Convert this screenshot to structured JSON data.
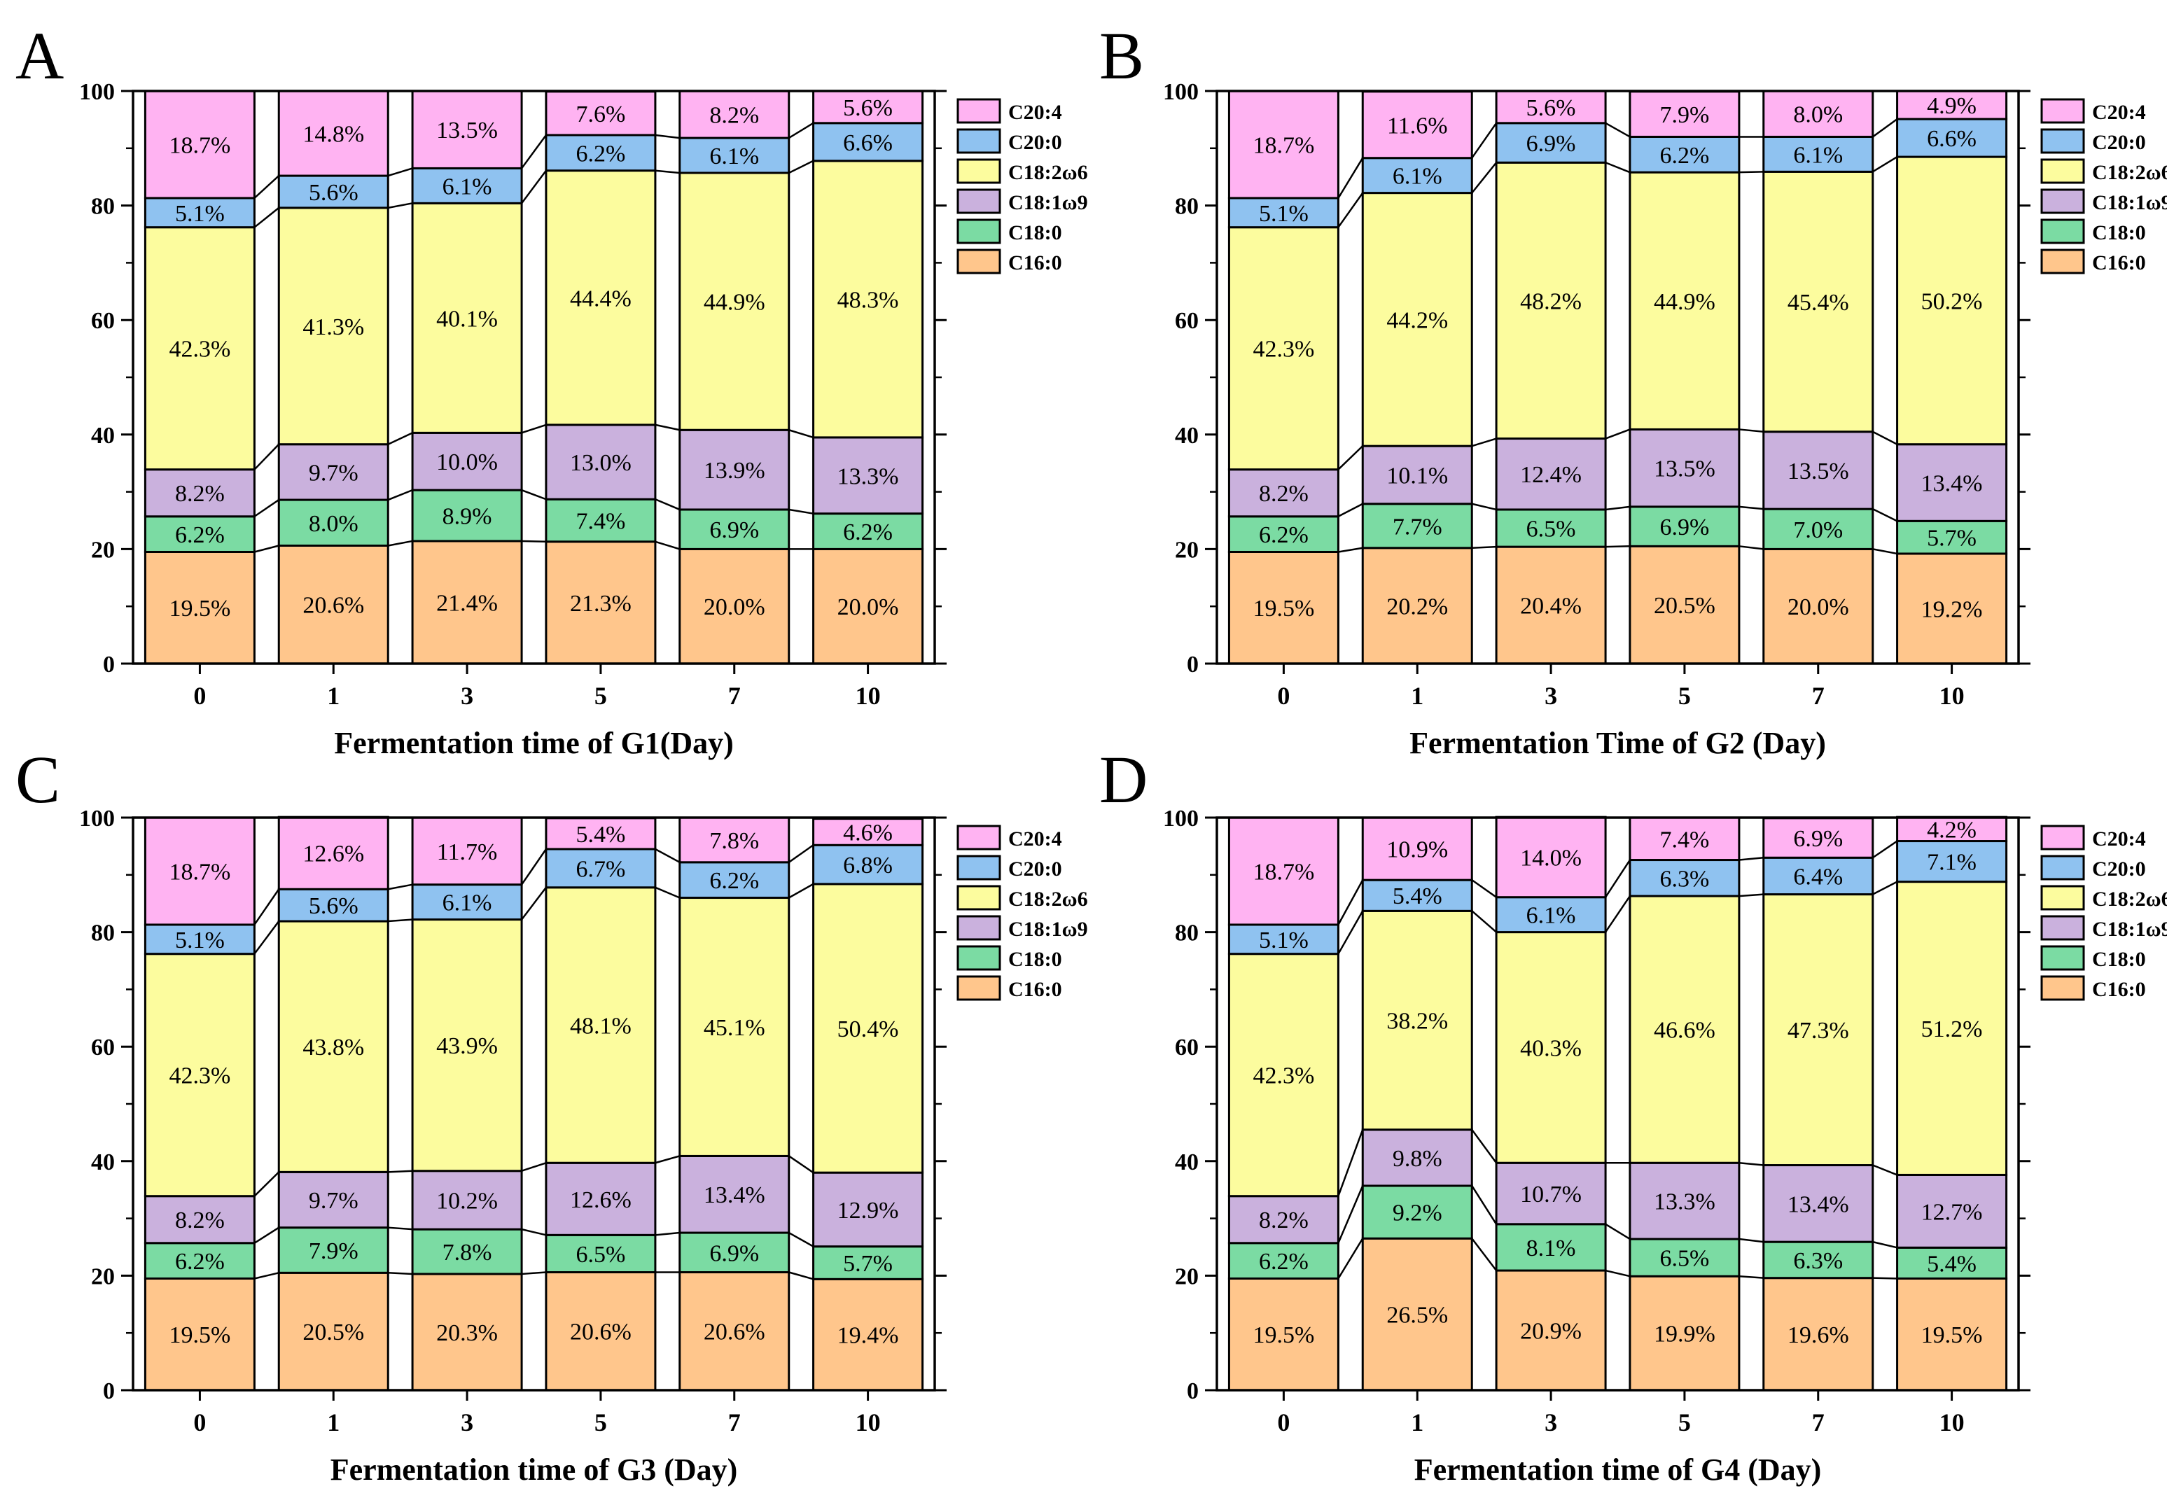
{
  "figure": {
    "background": "#ffffff",
    "legend_order": [
      "C20:4",
      "C20:0",
      "C18:2ω6",
      "C18:1ω9",
      "C18:0",
      "C16:0"
    ],
    "colors": {
      "C20:4": "#FFB3F2",
      "C20:0": "#8FC2F0",
      "C18:2ω6": "#FCFC9E",
      "C18:1ω9": "#CAB1DD",
      "C18:0": "#7BDBA3",
      "C16:0": "#FFC68C"
    },
    "bar_border_color": "#000000",
    "connector_color": "#000000"
  },
  "chart_data": [
    {
      "type": "bar",
      "stacked": true,
      "panel_letter": "A",
      "title": "",
      "xlabel": "Fermentation time of G1(Day)",
      "ylabel": "",
      "ylim": [
        0,
        100
      ],
      "yticks": [
        0,
        20,
        40,
        60,
        80,
        100
      ],
      "yminorticks": [
        10,
        30,
        50,
        70,
        90
      ],
      "legend_position": "right",
      "grid": false,
      "categories": [
        "0",
        "1",
        "3",
        "5",
        "7",
        "10"
      ],
      "series": [
        {
          "name": "C16:0",
          "values": [
            19.5,
            20.6,
            21.4,
            21.3,
            20.0,
            20.0
          ]
        },
        {
          "name": "C18:0",
          "values": [
            6.2,
            8.0,
            8.9,
            7.4,
            6.9,
            6.2
          ]
        },
        {
          "name": "C18:1ω9",
          "values": [
            8.2,
            9.7,
            10.0,
            13.0,
            13.9,
            13.3
          ]
        },
        {
          "name": "C18:2ω6",
          "values": [
            42.3,
            41.3,
            40.1,
            44.4,
            44.9,
            48.3
          ]
        },
        {
          "name": "C20:0",
          "values": [
            5.1,
            5.6,
            6.1,
            6.2,
            6.1,
            6.6
          ]
        },
        {
          "name": "C20:4",
          "values": [
            18.7,
            14.8,
            13.5,
            7.6,
            8.2,
            5.6
          ]
        }
      ]
    },
    {
      "type": "bar",
      "stacked": true,
      "panel_letter": "B",
      "title": "",
      "xlabel": "Fermentation Time of G2 (Day)",
      "ylabel": "",
      "ylim": [
        0,
        100
      ],
      "yticks": [
        0,
        20,
        40,
        60,
        80,
        100
      ],
      "yminorticks": [
        10,
        30,
        50,
        70,
        90
      ],
      "legend_position": "right",
      "grid": false,
      "categories": [
        "0",
        "1",
        "3",
        "5",
        "7",
        "10"
      ],
      "series": [
        {
          "name": "C16:0",
          "values": [
            19.5,
            20.2,
            20.4,
            20.5,
            20.0,
            19.2
          ]
        },
        {
          "name": "C18:0",
          "values": [
            6.2,
            7.7,
            6.5,
            6.9,
            7.0,
            5.7
          ]
        },
        {
          "name": "C18:1ω9",
          "values": [
            8.2,
            10.1,
            12.4,
            13.5,
            13.5,
            13.4
          ]
        },
        {
          "name": "C18:2ω6",
          "values": [
            42.3,
            44.2,
            48.2,
            44.9,
            45.4,
            50.2
          ]
        },
        {
          "name": "C20:0",
          "values": [
            5.1,
            6.1,
            6.9,
            6.2,
            6.1,
            6.6
          ]
        },
        {
          "name": "C20:4",
          "values": [
            18.7,
            11.6,
            5.6,
            7.9,
            8.0,
            4.9
          ]
        }
      ]
    },
    {
      "type": "bar",
      "stacked": true,
      "panel_letter": "C",
      "title": "",
      "xlabel": "Fermentation time of G3 (Day)",
      "ylabel": "",
      "ylim": [
        0,
        100
      ],
      "yticks": [
        0,
        20,
        40,
        60,
        80,
        100
      ],
      "yminorticks": [
        10,
        30,
        50,
        70,
        90
      ],
      "legend_position": "right",
      "grid": false,
      "categories": [
        "0",
        "1",
        "3",
        "5",
        "7",
        "10"
      ],
      "series": [
        {
          "name": "C16:0",
          "values": [
            19.5,
            20.5,
            20.3,
            20.6,
            20.6,
            19.4
          ]
        },
        {
          "name": "C18:0",
          "values": [
            6.2,
            7.9,
            7.8,
            6.5,
            6.9,
            5.7
          ]
        },
        {
          "name": "C18:1ω9",
          "values": [
            8.2,
            9.7,
            10.2,
            12.6,
            13.4,
            12.9
          ]
        },
        {
          "name": "C18:2ω6",
          "values": [
            42.3,
            43.8,
            43.9,
            48.1,
            45.1,
            50.4
          ]
        },
        {
          "name": "C20:0",
          "values": [
            5.1,
            5.6,
            6.1,
            6.7,
            6.2,
            6.8
          ]
        },
        {
          "name": "C20:4",
          "values": [
            18.7,
            12.6,
            11.7,
            5.4,
            7.8,
            4.6
          ]
        }
      ]
    },
    {
      "type": "bar",
      "stacked": true,
      "panel_letter": "D",
      "title": "",
      "xlabel": "Fermentation time of G4 (Day)",
      "ylabel": "",
      "ylim": [
        0,
        100
      ],
      "yticks": [
        0,
        20,
        40,
        60,
        80,
        100
      ],
      "yminorticks": [
        10,
        30,
        50,
        70,
        90
      ],
      "legend_position": "right",
      "grid": false,
      "categories": [
        "0",
        "1",
        "3",
        "5",
        "7",
        "10"
      ],
      "series": [
        {
          "name": "C16:0",
          "values": [
            19.5,
            26.5,
            20.9,
            19.9,
            19.6,
            19.5
          ]
        },
        {
          "name": "C18:0",
          "values": [
            6.2,
            9.2,
            8.1,
            6.5,
            6.3,
            5.4
          ]
        },
        {
          "name": "C18:1ω9",
          "values": [
            8.2,
            9.8,
            10.7,
            13.3,
            13.4,
            12.7
          ]
        },
        {
          "name": "C18:2ω6",
          "values": [
            42.3,
            38.2,
            40.3,
            46.6,
            47.3,
            51.2
          ]
        },
        {
          "name": "C20:0",
          "values": [
            5.1,
            5.4,
            6.1,
            6.3,
            6.4,
            7.1
          ]
        },
        {
          "name": "C20:4",
          "values": [
            18.7,
            10.9,
            14.0,
            7.4,
            6.9,
            4.2
          ]
        }
      ]
    }
  ]
}
